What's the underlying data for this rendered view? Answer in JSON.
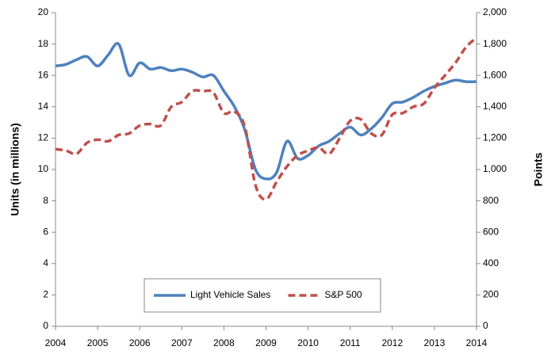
{
  "chart_data": {
    "type": "line",
    "y_label": "Units (in millions)",
    "y2_label": "Points",
    "x": [
      2004,
      2004.25,
      2004.5,
      2004.75,
      2005,
      2005.25,
      2005.5,
      2005.75,
      2006,
      2006.25,
      2006.5,
      2006.75,
      2007,
      2007.25,
      2007.5,
      2007.75,
      2008,
      2008.25,
      2008.5,
      2008.75,
      2009,
      2009.25,
      2009.5,
      2009.75,
      2010,
      2010.25,
      2010.5,
      2010.75,
      2011,
      2011.25,
      2011.5,
      2011.75,
      2012,
      2012.25,
      2012.5,
      2012.75,
      2013,
      2013.25,
      2013.5,
      2013.75,
      2014
    ],
    "series": [
      {
        "name": "Light Vehicle Sales",
        "color": "#4f81bd",
        "dash": false,
        "values": [
          16.6,
          16.7,
          17.0,
          17.2,
          16.6,
          17.3,
          18.0,
          16.0,
          16.8,
          16.4,
          16.5,
          16.3,
          16.4,
          16.2,
          15.9,
          16.0,
          15.0,
          14.0,
          12.5,
          10.0,
          9.4,
          9.8,
          11.8,
          10.7,
          10.9,
          11.5,
          11.8,
          12.3,
          12.7,
          12.2,
          12.6,
          13.3,
          14.2,
          14.3,
          14.6,
          15.0,
          15.3,
          15.5,
          15.7,
          15.6,
          15.6
        ]
      },
      {
        "name": "S&P 500",
        "color": "#c0504d",
        "dash": true,
        "axis": "y2",
        "values": [
          1130,
          1120,
          1100,
          1170,
          1190,
          1180,
          1220,
          1230,
          1280,
          1290,
          1280,
          1400,
          1430,
          1500,
          1500,
          1490,
          1360,
          1370,
          1270,
          900,
          810,
          920,
          1020,
          1090,
          1120,
          1140,
          1100,
          1200,
          1310,
          1320,
          1230,
          1220,
          1350,
          1360,
          1400,
          1420,
          1520,
          1600,
          1680,
          1780,
          1840
        ]
      }
    ],
    "xlim": [
      2004,
      2014
    ],
    "xticks": [
      2004,
      2005,
      2006,
      2007,
      2008,
      2009,
      2010,
      2011,
      2012,
      2013,
      2014
    ],
    "ylim": [
      0,
      20
    ],
    "yticks": [
      0,
      2,
      4,
      6,
      8,
      10,
      12,
      14,
      16,
      18,
      20
    ],
    "y2lim": [
      0,
      2000
    ],
    "y2ticks": [
      0,
      200,
      400,
      600,
      800,
      {
        "value": 1000,
        "label": "1,000"
      },
      {
        "value": 1200,
        "label": "1,200"
      },
      {
        "value": 1400,
        "label": "1,400"
      },
      {
        "value": 1600,
        "label": "1,600"
      },
      {
        "value": 1800,
        "label": "1,800"
      },
      {
        "value": 2000,
        "label": "2,000"
      }
    ],
    "legend": "bottom-center"
  }
}
